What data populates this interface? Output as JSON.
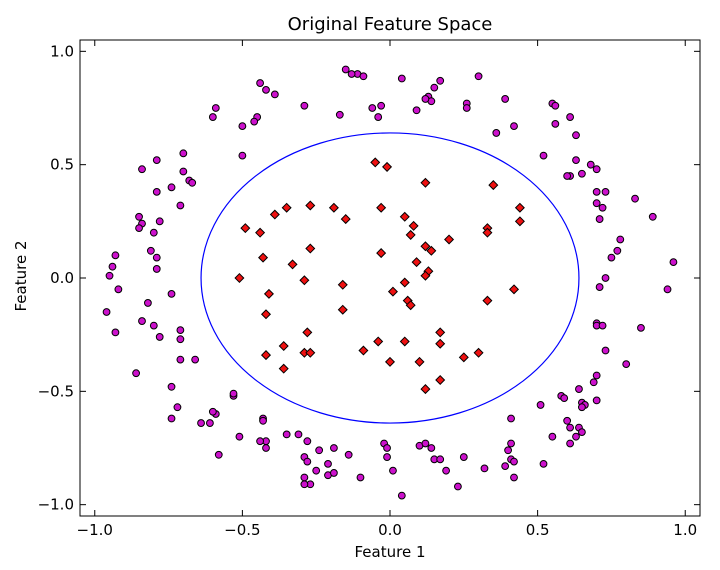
{
  "chart_data": {
    "type": "scatter",
    "title": "Original Feature Space",
    "xlabel": "Feature 1",
    "ylabel": "Feature 2",
    "xlim": [
      -1.05,
      1.05
    ],
    "ylim": [
      -1.05,
      1.05
    ],
    "xticks": [
      -1.0,
      -0.5,
      0.0,
      0.5,
      1.0
    ],
    "yticks": [
      -1.0,
      -0.5,
      0.0,
      0.5,
      1.0
    ],
    "xtick_labels": [
      "−1.0",
      "−0.5",
      "0.0",
      "0.5",
      "1.0"
    ],
    "ytick_labels": [
      "−1.0",
      "−0.5",
      "0.0",
      "0.5",
      "1.0"
    ],
    "grid": false,
    "colors": {
      "outer_fill": "#cc11cc",
      "inner_fill": "#ee1111",
      "boundary": "#0000ff"
    },
    "decision_boundary": {
      "shape": "circle",
      "center": [
        0.0,
        0.0
      ],
      "radius": 0.64
    },
    "series": [
      {
        "marker": "circle",
        "points": [
          [
            -0.15,
            0.92
          ],
          [
            -0.11,
            0.9
          ],
          [
            -0.13,
            0.9
          ],
          [
            -0.09,
            0.89
          ],
          [
            0.04,
            0.88
          ],
          [
            0.3,
            0.89
          ],
          [
            0.17,
            0.87
          ],
          [
            -0.44,
            0.86
          ],
          [
            -0.42,
            0.83
          ],
          [
            -0.39,
            0.81
          ],
          [
            0.15,
            0.84
          ],
          [
            0.13,
            0.8
          ],
          [
            0.14,
            0.78
          ],
          [
            0.12,
            0.79
          ],
          [
            0.26,
            0.77
          ],
          [
            0.39,
            0.79
          ],
          [
            0.26,
            0.75
          ],
          [
            0.09,
            0.74
          ],
          [
            -0.06,
            0.75
          ],
          [
            -0.03,
            0.76
          ],
          [
            -0.59,
            0.75
          ],
          [
            -0.29,
            0.76
          ],
          [
            -0.17,
            0.72
          ],
          [
            -0.04,
            0.71
          ],
          [
            -0.6,
            0.71
          ],
          [
            -0.45,
            0.71
          ],
          [
            -0.46,
            0.69
          ],
          [
            -0.5,
            0.67
          ],
          [
            0.55,
            0.77
          ],
          [
            0.56,
            0.76
          ],
          [
            0.61,
            0.71
          ],
          [
            0.56,
            0.68
          ],
          [
            0.42,
            0.67
          ],
          [
            0.36,
            0.64
          ],
          [
            0.63,
            0.63
          ],
          [
            -0.5,
            0.54
          ],
          [
            -0.7,
            0.55
          ],
          [
            -0.79,
            0.52
          ],
          [
            -0.84,
            0.48
          ],
          [
            -0.7,
            0.47
          ],
          [
            -0.68,
            0.43
          ],
          [
            -0.67,
            0.42
          ],
          [
            -0.74,
            0.4
          ],
          [
            -0.79,
            0.38
          ],
          [
            -0.71,
            0.32
          ],
          [
            0.52,
            0.54
          ],
          [
            0.63,
            0.52
          ],
          [
            0.68,
            0.5
          ],
          [
            0.7,
            0.48
          ],
          [
            0.65,
            0.46
          ],
          [
            0.61,
            0.45
          ],
          [
            0.6,
            0.45
          ],
          [
            0.7,
            0.38
          ],
          [
            0.73,
            0.38
          ],
          [
            0.7,
            0.33
          ],
          [
            0.72,
            0.31
          ],
          [
            0.71,
            0.26
          ],
          [
            0.83,
            0.35
          ],
          [
            0.89,
            0.27
          ],
          [
            -0.85,
            0.27
          ],
          [
            -0.84,
            0.24
          ],
          [
            -0.85,
            0.22
          ],
          [
            -0.78,
            0.25
          ],
          [
            -0.8,
            0.2
          ],
          [
            -0.81,
            0.12
          ],
          [
            -0.93,
            0.1
          ],
          [
            -0.94,
            0.05
          ],
          [
            -0.92,
            -0.05
          ],
          [
            -0.95,
            0.01
          ],
          [
            -0.79,
            0.09
          ],
          [
            -0.79,
            0.04
          ],
          [
            -0.96,
            -0.15
          ],
          [
            -0.82,
            -0.11
          ],
          [
            -0.74,
            -0.07
          ],
          [
            -0.84,
            -0.19
          ],
          [
            -0.8,
            -0.21
          ],
          [
            -0.78,
            -0.26
          ],
          [
            -0.93,
            -0.24
          ],
          [
            -0.71,
            -0.23
          ],
          [
            -0.71,
            -0.27
          ],
          [
            0.78,
            0.17
          ],
          [
            0.77,
            0.12
          ],
          [
            0.75,
            0.09
          ],
          [
            0.73,
            0.0
          ],
          [
            0.71,
            -0.04
          ],
          [
            0.96,
            0.07
          ],
          [
            0.94,
            -0.05
          ],
          [
            0.7,
            -0.2
          ],
          [
            0.7,
            -0.21
          ],
          [
            0.72,
            -0.21
          ],
          [
            0.85,
            -0.22
          ],
          [
            0.73,
            -0.32
          ],
          [
            -0.86,
            -0.42
          ],
          [
            -0.71,
            -0.36
          ],
          [
            -0.66,
            -0.36
          ],
          [
            -0.74,
            -0.48
          ],
          [
            -0.72,
            -0.57
          ],
          [
            -0.74,
            -0.62
          ],
          [
            -0.64,
            -0.64
          ],
          [
            -0.59,
            -0.6
          ],
          [
            -0.6,
            -0.59
          ],
          [
            -0.53,
            -0.52
          ],
          [
            -0.53,
            -0.51
          ],
          [
            -0.61,
            -0.64
          ],
          [
            -0.58,
            -0.78
          ],
          [
            -0.51,
            -0.7
          ],
          [
            -0.43,
            -0.62
          ],
          [
            -0.43,
            -0.63
          ],
          [
            -0.42,
            -0.72
          ],
          [
            -0.44,
            -0.72
          ],
          [
            -0.42,
            -0.75
          ],
          [
            -0.35,
            -0.69
          ],
          [
            -0.31,
            -0.69
          ],
          [
            -0.28,
            -0.72
          ],
          [
            -0.29,
            -0.79
          ],
          [
            -0.28,
            -0.81
          ],
          [
            -0.29,
            -0.88
          ],
          [
            -0.24,
            -0.76
          ],
          [
            -0.19,
            -0.75
          ],
          [
            -0.21,
            -0.82
          ],
          [
            -0.25,
            -0.85
          ],
          [
            -0.27,
            -0.91
          ],
          [
            -0.29,
            -0.91
          ],
          [
            -0.21,
            -0.87
          ],
          [
            -0.19,
            -0.86
          ],
          [
            -0.14,
            -0.78
          ],
          [
            -0.1,
            -0.88
          ],
          [
            -0.02,
            -0.73
          ],
          [
            -0.01,
            -0.79
          ],
          [
            -0.01,
            -0.75
          ],
          [
            0.01,
            -0.85
          ],
          [
            0.04,
            -0.96
          ],
          [
            0.1,
            -0.74
          ],
          [
            0.12,
            -0.73
          ],
          [
            0.14,
            -0.75
          ],
          [
            0.15,
            -0.8
          ],
          [
            0.17,
            -0.8
          ],
          [
            0.19,
            -0.85
          ],
          [
            0.23,
            -0.92
          ],
          [
            0.25,
            -0.79
          ],
          [
            0.32,
            -0.84
          ],
          [
            0.4,
            -0.76
          ],
          [
            0.39,
            -0.83
          ],
          [
            0.41,
            -0.73
          ],
          [
            0.41,
            -0.8
          ],
          [
            0.42,
            -0.81
          ],
          [
            0.42,
            -0.88
          ],
          [
            0.41,
            -0.62
          ],
          [
            0.51,
            -0.56
          ],
          [
            0.55,
            -0.7
          ],
          [
            0.52,
            -0.82
          ],
          [
            0.58,
            -0.52
          ],
          [
            0.59,
            -0.53
          ],
          [
            0.6,
            -0.63
          ],
          [
            0.61,
            -0.66
          ],
          [
            0.61,
            -0.73
          ],
          [
            0.64,
            -0.49
          ],
          [
            0.65,
            -0.55
          ],
          [
            0.64,
            -0.66
          ],
          [
            0.63,
            -0.7
          ],
          [
            0.69,
            -0.46
          ],
          [
            0.7,
            -0.43
          ],
          [
            0.7,
            -0.54
          ],
          [
            0.66,
            -0.56
          ],
          [
            0.65,
            -0.57
          ],
          [
            0.65,
            -0.68
          ],
          [
            0.8,
            -0.38
          ]
        ]
      },
      {
        "marker": "diamond",
        "points": [
          [
            -0.05,
            0.51
          ],
          [
            -0.01,
            0.49
          ],
          [
            0.12,
            0.42
          ],
          [
            0.35,
            0.41
          ],
          [
            -0.49,
            0.22
          ],
          [
            -0.44,
            0.2
          ],
          [
            -0.39,
            0.28
          ],
          [
            -0.35,
            0.31
          ],
          [
            -0.27,
            0.32
          ],
          [
            -0.19,
            0.31
          ],
          [
            -0.15,
            0.26
          ],
          [
            -0.03,
            0.31
          ],
          [
            0.05,
            0.27
          ],
          [
            0.08,
            0.23
          ],
          [
            0.07,
            0.19
          ],
          [
            0.2,
            0.17
          ],
          [
            0.33,
            0.22
          ],
          [
            0.33,
            0.2
          ],
          [
            0.44,
            0.31
          ],
          [
            0.44,
            0.25
          ],
          [
            -0.27,
            0.13
          ],
          [
            -0.43,
            0.09
          ],
          [
            -0.33,
            0.06
          ],
          [
            -0.29,
            -0.01
          ],
          [
            -0.16,
            -0.03
          ],
          [
            -0.03,
            0.11
          ],
          [
            0.12,
            0.14
          ],
          [
            0.14,
            0.12
          ],
          [
            0.09,
            0.07
          ],
          [
            0.13,
            0.03
          ],
          [
            0.12,
            0.01
          ],
          [
            0.05,
            -0.02
          ],
          [
            0.01,
            -0.06
          ],
          [
            -0.51,
            0.0
          ],
          [
            -0.41,
            -0.07
          ],
          [
            -0.42,
            -0.16
          ],
          [
            -0.16,
            -0.14
          ],
          [
            0.06,
            -0.1
          ],
          [
            0.07,
            -0.12
          ],
          [
            0.42,
            -0.05
          ],
          [
            0.33,
            -0.1
          ],
          [
            -0.28,
            -0.24
          ],
          [
            -0.36,
            -0.3
          ],
          [
            -0.29,
            -0.33
          ],
          [
            -0.27,
            -0.33
          ],
          [
            -0.42,
            -0.34
          ],
          [
            -0.36,
            -0.4
          ],
          [
            -0.09,
            -0.32
          ],
          [
            -0.04,
            -0.28
          ],
          [
            -0.0,
            -0.37
          ],
          [
            0.05,
            -0.28
          ],
          [
            0.17,
            -0.24
          ],
          [
            0.17,
            -0.29
          ],
          [
            0.1,
            -0.37
          ],
          [
            0.17,
            -0.45
          ],
          [
            0.12,
            -0.49
          ],
          [
            0.25,
            -0.35
          ],
          [
            0.3,
            -0.33
          ]
        ]
      }
    ]
  }
}
